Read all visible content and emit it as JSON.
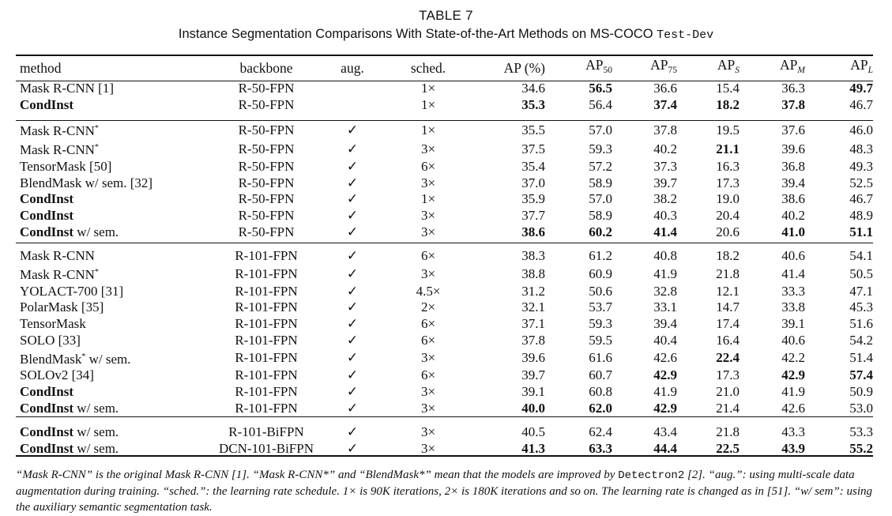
{
  "caption": {
    "number": "TABLE 7",
    "title_prefix": "Instance Segmentation Comparisons With State-of-the-Art Methods on MS-COCO ",
    "title_split": "Test-Dev"
  },
  "header": {
    "method": "method",
    "backbone": "backbone",
    "aug": "aug.",
    "sched": "sched.",
    "ap": "AP (%)",
    "ap_base": "AP",
    "ap50_sub": "50",
    "ap75_sub": "75",
    "aps_sub": "S",
    "apm_sub": "M",
    "apl_sub": "L"
  },
  "groups": [
    {
      "rows": [
        {
          "method": "Mask R-CNN [1]",
          "backbone": "R-50-FPN",
          "aug": "",
          "sched": "1×",
          "ap": "34.6",
          "ap50": "56.5",
          "ap75": "36.6",
          "aps": "15.4",
          "apm": "36.3",
          "apl": "49.7"
        },
        {
          "method": "CondInst",
          "backbone": "R-50-FPN",
          "aug": "",
          "sched": "1×",
          "ap": "35.3",
          "ap50": "56.4",
          "ap75": "37.4",
          "aps": "18.2",
          "apm": "37.8",
          "apl": "46.7"
        }
      ]
    },
    {
      "rows": [
        {
          "method": "Mask R-CNN*",
          "backbone": "R-50-FPN",
          "aug": "✓",
          "sched": "1×",
          "ap": "35.5",
          "ap50": "57.0",
          "ap75": "37.8",
          "aps": "19.5",
          "apm": "37.6",
          "apl": "46.0"
        },
        {
          "method": "Mask R-CNN*",
          "backbone": "R-50-FPN",
          "aug": "✓",
          "sched": "3×",
          "ap": "37.5",
          "ap50": "59.3",
          "ap75": "40.2",
          "aps": "21.1",
          "apm": "39.6",
          "apl": "48.3"
        },
        {
          "method": "TensorMask [50]",
          "backbone": "R-50-FPN",
          "aug": "✓",
          "sched": "6×",
          "ap": "35.4",
          "ap50": "57.2",
          "ap75": "37.3",
          "aps": "16.3",
          "apm": "36.8",
          "apl": "49.3"
        },
        {
          "method": "BlendMask w/ sem. [32]",
          "backbone": "R-50-FPN",
          "aug": "✓",
          "sched": "3×",
          "ap": "37.0",
          "ap50": "58.9",
          "ap75": "39.7",
          "aps": "17.3",
          "apm": "39.4",
          "apl": "52.5"
        },
        {
          "method": "CondInst",
          "backbone": "R-50-FPN",
          "aug": "✓",
          "sched": "1×",
          "ap": "35.9",
          "ap50": "57.0",
          "ap75": "38.2",
          "aps": "19.0",
          "apm": "38.6",
          "apl": "46.7"
        },
        {
          "method": "CondInst",
          "backbone": "R-50-FPN",
          "aug": "✓",
          "sched": "3×",
          "ap": "37.7",
          "ap50": "58.9",
          "ap75": "40.3",
          "aps": "20.4",
          "apm": "40.2",
          "apl": "48.9"
        },
        {
          "method": "CondInst w/ sem.",
          "backbone": "R-50-FPN",
          "aug": "✓",
          "sched": "3×",
          "ap": "38.6",
          "ap50": "60.2",
          "ap75": "41.4",
          "aps": "20.6",
          "apm": "41.0",
          "apl": "51.1"
        }
      ]
    },
    {
      "rows": [
        {
          "method": "Mask R-CNN",
          "backbone": "R-101-FPN",
          "aug": "✓",
          "sched": "6×",
          "ap": "38.3",
          "ap50": "61.2",
          "ap75": "40.8",
          "aps": "18.2",
          "apm": "40.6",
          "apl": "54.1"
        },
        {
          "method": "Mask R-CNN*",
          "backbone": "R-101-FPN",
          "aug": "✓",
          "sched": "3×",
          "ap": "38.8",
          "ap50": "60.9",
          "ap75": "41.9",
          "aps": "21.8",
          "apm": "41.4",
          "apl": "50.5"
        },
        {
          "method": "YOLACT-700 [31]",
          "backbone": "R-101-FPN",
          "aug": "✓",
          "sched": "4.5×",
          "ap": "31.2",
          "ap50": "50.6",
          "ap75": "32.8",
          "aps": "12.1",
          "apm": "33.3",
          "apl": "47.1"
        },
        {
          "method": "PolarMask [35]",
          "backbone": "R-101-FPN",
          "aug": "✓",
          "sched": "2×",
          "ap": "32.1",
          "ap50": "53.7",
          "ap75": "33.1",
          "aps": "14.7",
          "apm": "33.8",
          "apl": "45.3"
        },
        {
          "method": "TensorMask",
          "backbone": "R-101-FPN",
          "aug": "✓",
          "sched": "6×",
          "ap": "37.1",
          "ap50": "59.3",
          "ap75": "39.4",
          "aps": "17.4",
          "apm": "39.1",
          "apl": "51.6"
        },
        {
          "method": "SOLO [33]",
          "backbone": "R-101-FPN",
          "aug": "✓",
          "sched": "6×",
          "ap": "37.8",
          "ap50": "59.5",
          "ap75": "40.4",
          "aps": "16.4",
          "apm": "40.6",
          "apl": "54.2"
        },
        {
          "method": "BlendMask* w/ sem.",
          "backbone": "R-101-FPN",
          "aug": "✓",
          "sched": "3×",
          "ap": "39.6",
          "ap50": "61.6",
          "ap75": "42.6",
          "aps": "22.4",
          "apm": "42.2",
          "apl": "51.4"
        },
        {
          "method": "SOLOv2 [34]",
          "backbone": "R-101-FPN",
          "aug": "✓",
          "sched": "6×",
          "ap": "39.7",
          "ap50": "60.7",
          "ap75": "42.9",
          "aps": "17.3",
          "apm": "42.9",
          "apl": "57.4"
        },
        {
          "method": "CondInst",
          "backbone": "R-101-FPN",
          "aug": "✓",
          "sched": "3×",
          "ap": "39.1",
          "ap50": "60.8",
          "ap75": "41.9",
          "aps": "21.0",
          "apm": "41.9",
          "apl": "50.9"
        },
        {
          "method": "CondInst w/ sem.",
          "backbone": "R-101-FPN",
          "aug": "✓",
          "sched": "3×",
          "ap": "40.0",
          "ap50": "62.0",
          "ap75": "42.9",
          "aps": "21.4",
          "apm": "42.6",
          "apl": "53.0"
        }
      ]
    },
    {
      "rows": [
        {
          "method": "CondInst w/ sem.",
          "backbone": "R-101-BiFPN",
          "aug": "✓",
          "sched": "3×",
          "ap": "40.5",
          "ap50": "62.4",
          "ap75": "43.4",
          "aps": "21.8",
          "apm": "43.3",
          "apl": "53.3"
        },
        {
          "method": "CondInst w/ sem.",
          "backbone": "DCN-101-BiFPN",
          "aug": "✓",
          "sched": "3×",
          "ap": "41.3",
          "ap50": "63.3",
          "ap75": "44.4",
          "aps": "22.5",
          "apm": "43.9",
          "apl": "55.2"
        }
      ]
    }
  ],
  "footnote": {
    "p1": "“Mask R-CNN” is the original Mask R-CNN [1]. “Mask R-CNN*” and “BlendMask*” mean that the models are improved by ",
    "code": "Detectron2",
    "p2": " [2]. “aug.”: using multi-scale data augmentation during training. “sched.”: the learning rate schedule. 1× is 90K iterations, 2× is 180K iterations and so on. The learning rate is changed as in [51]. “w/ sem”: using the auxiliary semantic segmentation task."
  }
}
